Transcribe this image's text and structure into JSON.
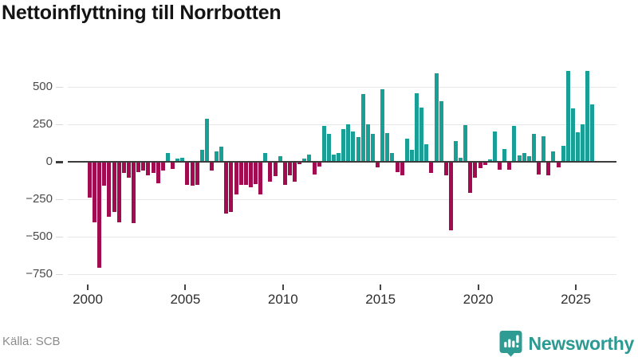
{
  "title": "Nettoinflyttning till Norrbotten",
  "source": "Källa: SCB",
  "brand": {
    "name": "Newsworthy"
  },
  "colors": {
    "positive": "#18a096",
    "negative": "#a20b50",
    "zero_line": "#3c3c3c",
    "gridline": "#e7e7ea",
    "brand": "#2b9a93",
    "title_text": "#141414",
    "axis_text": "#4a4a4a",
    "source_text": "#8c8c8c"
  },
  "chart_data": {
    "type": "bar",
    "title": "Nettoinflyttning till Norrbotten",
    "xlabel": "",
    "ylabel": "",
    "frequency": "quarterly",
    "start_year": 2000,
    "end_year": 2025,
    "grid": "horizontal",
    "legend": "none",
    "ylim": [
      -780,
      650
    ],
    "y_ticks": [
      {
        "v": 500,
        "label": "500"
      },
      {
        "v": 250,
        "label": "250"
      },
      {
        "v": 0,
        "label": "0"
      },
      {
        "v": -250,
        "label": "−250"
      },
      {
        "v": -500,
        "label": "−500"
      },
      {
        "v": -750,
        "label": "−750"
      }
    ],
    "x_ticks": [
      2000,
      2005,
      2010,
      2015,
      2020,
      2025
    ],
    "values": [
      -235,
      -400,
      -700,
      -155,
      -360,
      -330,
      -400,
      -70,
      -100,
      -405,
      -60,
      -50,
      -85,
      -65,
      -135,
      -50,
      55,
      -40,
      20,
      25,
      -145,
      -155,
      -145,
      75,
      285,
      -50,
      65,
      100,
      -340,
      -330,
      -210,
      -145,
      -145,
      -165,
      -140,
      -210,
      55,
      -125,
      -90,
      35,
      -150,
      -85,
      -125,
      -10,
      20,
      45,
      -80,
      -25,
      235,
      180,
      45,
      55,
      215,
      245,
      200,
      160,
      450,
      245,
      180,
      -30,
      480,
      190,
      55,
      -60,
      -85,
      150,
      75,
      455,
      360,
      115,
      -65,
      585,
      400,
      -85,
      -450,
      135,
      25,
      240,
      -200,
      -100,
      -35,
      -15,
      12,
      200,
      -45,
      80,
      -45,
      235,
      40,
      55,
      35,
      180,
      -80,
      165,
      -85,
      65,
      -30,
      105,
      605,
      355,
      195,
      245,
      605,
      380
    ]
  }
}
